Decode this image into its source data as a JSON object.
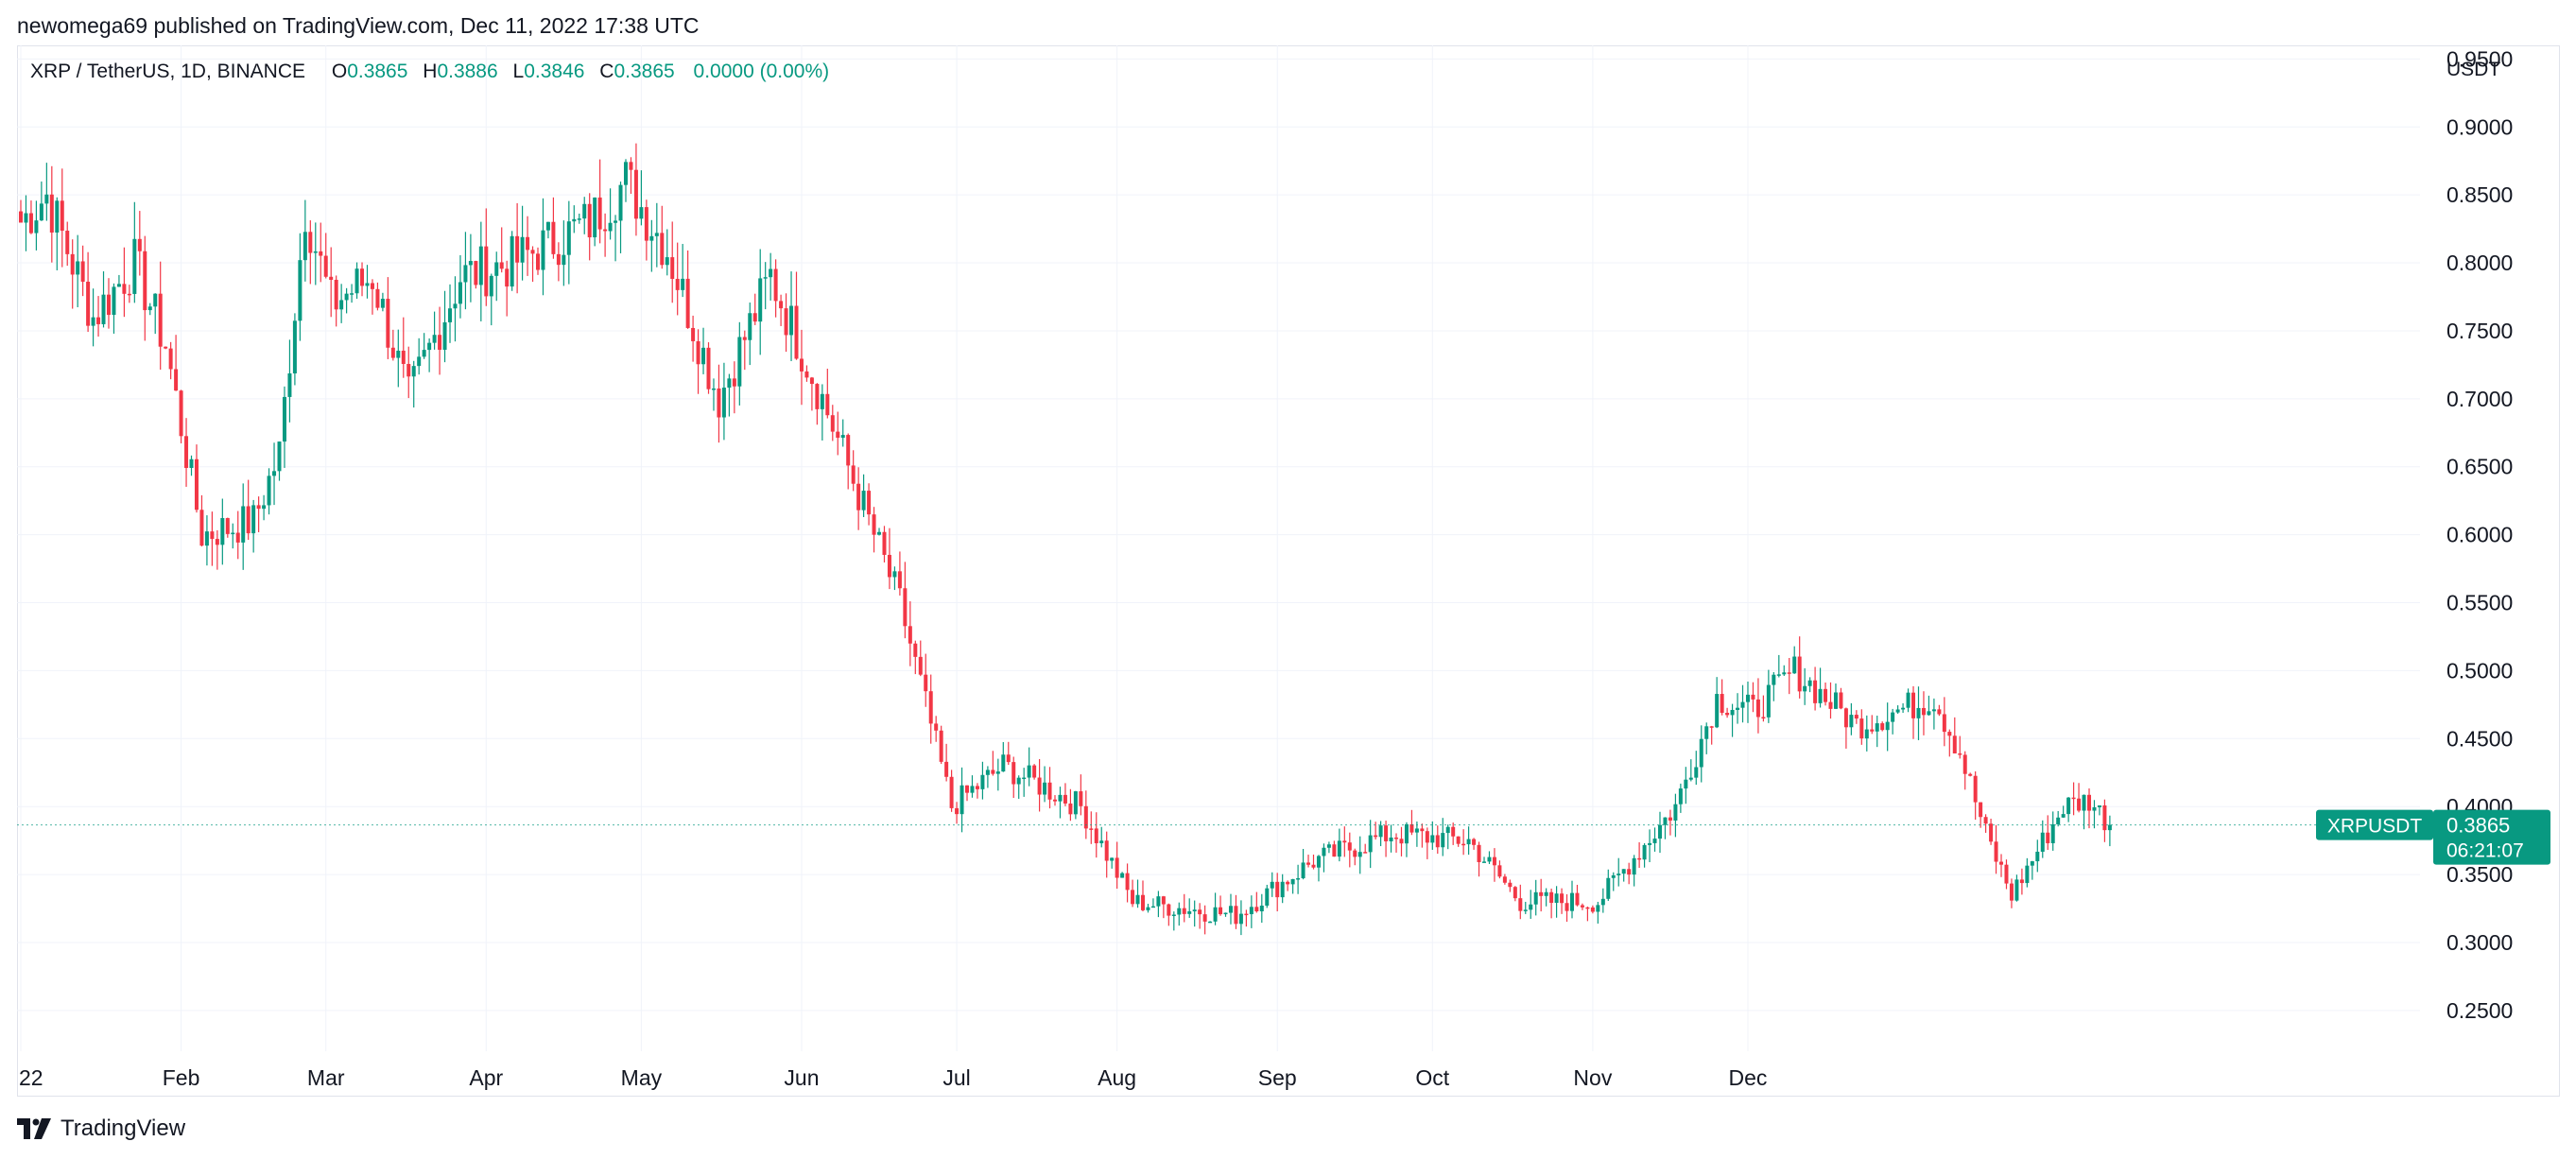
{
  "publisher_line": "newomega69 published on TradingView.com, Dec 11, 2022 17:38 UTC",
  "legend": {
    "symbol": "XRP / TetherUS, 1D, BINANCE",
    "o_label": "O",
    "o_value": "0.3865",
    "h_label": "H",
    "h_value": "0.3886",
    "l_label": "L",
    "l_value": "0.3846",
    "c_label": "C",
    "c_value": "0.3865",
    "change": "0.0000 (0.00%)"
  },
  "footer": {
    "brand": "TradingView",
    "logo_icon": "tradingview-logo-icon"
  },
  "colors": {
    "up": "#089981",
    "down": "#f23645",
    "grid": "#f0f3fa",
    "axis_text": "#131722",
    "price_line": "#089981"
  },
  "chart_data": {
    "type": "candlestick",
    "title": "",
    "currency_label": "USDT",
    "ylim": [
      0.22,
      0.96
    ],
    "y_ticks": [
      "0.9500",
      "0.9000",
      "0.8500",
      "0.8000",
      "0.7500",
      "0.7000",
      "0.6500",
      "0.6000",
      "0.5500",
      "0.5000",
      "0.4500",
      "0.4000",
      "0.3500",
      "0.3000",
      "0.2500"
    ],
    "x_tick_labels": [
      "22",
      "Feb",
      "Mar",
      "Apr",
      "May",
      "Jun",
      "Jul",
      "Aug",
      "Sep",
      "Oct",
      "Nov",
      "Dec"
    ],
    "grid": true,
    "last_price": {
      "label": "XRPUSDT",
      "value": "0.3865",
      "countdown": "06:21:07"
    },
    "close_anchors": [
      [
        0,
        0.83
      ],
      [
        5,
        0.85
      ],
      [
        14,
        0.76
      ],
      [
        22,
        0.8
      ],
      [
        28,
        0.74
      ],
      [
        35,
        0.6
      ],
      [
        45,
        0.61
      ],
      [
        50,
        0.66
      ],
      [
        55,
        0.84
      ],
      [
        60,
        0.77
      ],
      [
        68,
        0.79
      ],
      [
        75,
        0.7
      ],
      [
        85,
        0.79
      ],
      [
        95,
        0.8
      ],
      [
        110,
        0.83
      ],
      [
        117,
        0.86
      ],
      [
        125,
        0.81
      ],
      [
        135,
        0.7
      ],
      [
        145,
        0.79
      ],
      [
        155,
        0.7
      ],
      [
        163,
        0.62
      ],
      [
        170,
        0.55
      ],
      [
        180,
        0.4
      ],
      [
        190,
        0.43
      ],
      [
        205,
        0.4
      ],
      [
        215,
        0.33
      ],
      [
        235,
        0.32
      ],
      [
        250,
        0.36
      ],
      [
        265,
        0.38
      ],
      [
        280,
        0.375
      ],
      [
        290,
        0.33
      ],
      [
        305,
        0.33
      ],
      [
        320,
        0.4
      ],
      [
        328,
        0.48
      ],
      [
        335,
        0.47
      ],
      [
        343,
        0.5
      ],
      [
        355,
        0.46
      ],
      [
        370,
        0.48
      ],
      [
        375,
        0.44
      ],
      [
        380,
        0.38
      ],
      [
        385,
        0.335
      ],
      [
        395,
        0.4
      ],
      [
        400,
        0.405
      ],
      [
        404,
        0.3865
      ]
    ]
  }
}
